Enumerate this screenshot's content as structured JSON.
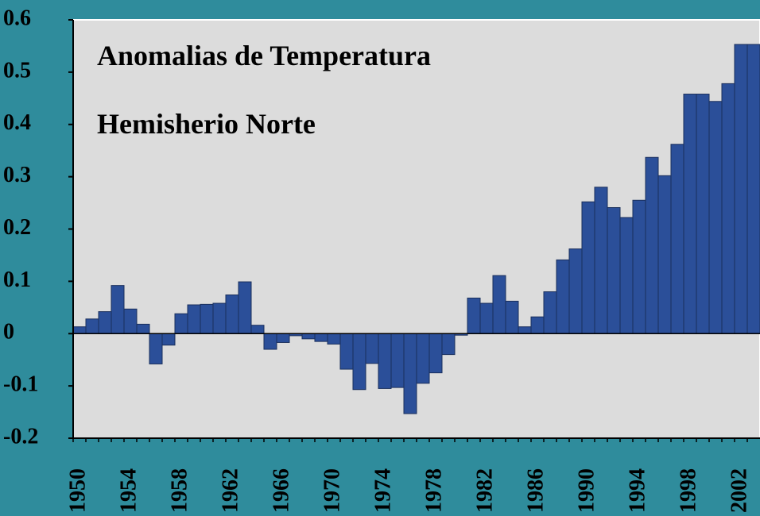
{
  "chart_data": {
    "type": "bar",
    "title": "Anomalias de Temperatura",
    "subtitle": "Hemisherio Norte",
    "categories": [
      "1950",
      null,
      null,
      null,
      "1954",
      null,
      null,
      null,
      "1958",
      null,
      null,
      null,
      "1962",
      null,
      null,
      null,
      "1966",
      null,
      null,
      null,
      "1970",
      null,
      null,
      null,
      "1974",
      null,
      null,
      null,
      "1978",
      null,
      null,
      null,
      "1982",
      null,
      null,
      null,
      "1986",
      null,
      null,
      null,
      "1990",
      null,
      null,
      null,
      "1994",
      null,
      null,
      null,
      "1998",
      null,
      null,
      null,
      "2002",
      null
    ],
    "values": [
      0.013,
      0.028,
      0.042,
      0.092,
      0.047,
      0.018,
      -0.058,
      -0.022,
      0.038,
      0.055,
      0.056,
      0.058,
      0.074,
      0.099,
      0.016,
      -0.03,
      -0.017,
      -0.004,
      -0.01,
      -0.015,
      -0.02,
      -0.068,
      -0.107,
      -0.057,
      -0.105,
      -0.103,
      -0.153,
      -0.095,
      -0.075,
      -0.04,
      -0.003,
      0.068,
      0.058,
      0.111,
      0.062,
      0.013,
      0.032,
      0.08,
      0.141,
      0.162,
      0.252,
      0.28,
      0.241,
      0.222,
      0.255,
      0.337,
      0.302,
      0.362,
      0.458,
      0.458,
      0.444,
      0.478,
      0.553,
      0.553
    ],
    "color": "#2b4f99",
    "ylim": [
      -0.2,
      0.6
    ],
    "yticks": [
      {
        "value": -0.2,
        "label": "-0.2"
      },
      {
        "value": -0.1,
        "label": "-0.1"
      },
      0,
      0.1,
      0.2,
      0.3,
      0.4,
      0.5,
      0.6
    ],
    "grid": false
  }
}
